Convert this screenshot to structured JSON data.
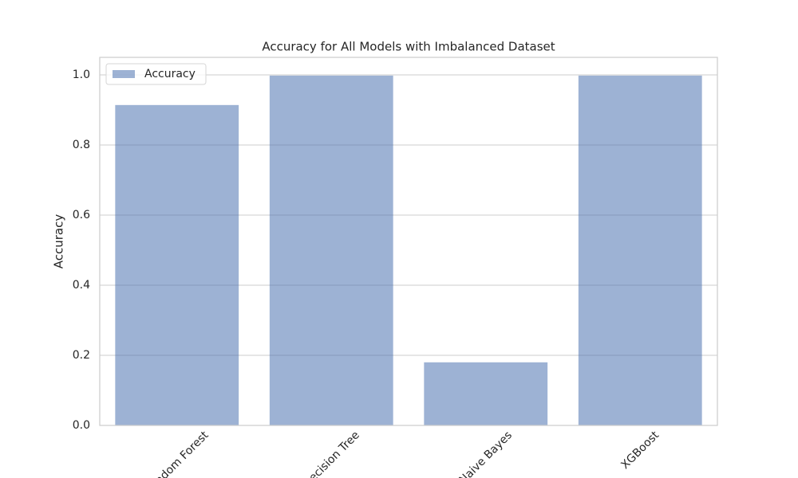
{
  "chart_data": {
    "type": "bar",
    "title": "Accuracy for All Models with Imbalanced Dataset",
    "y_label": "Accuracy",
    "categories": [
      "Random Forest",
      "Decision Tree",
      "Naive Bayes",
      "XGBoost"
    ],
    "series": [
      {
        "name": "Accuracy",
        "color": "#4c72b0",
        "values": [
          0.914,
          0.998,
          0.18,
          0.998
        ]
      }
    ],
    "ylim": [
      0,
      1.05
    ],
    "yticks": [
      {
        "value": 0,
        "label": "0.0"
      },
      {
        "value": 0.2,
        "label": "0.2"
      },
      {
        "value": 0.4,
        "label": "0.4"
      },
      {
        "value": 0.6,
        "label": "0.6"
      },
      {
        "value": 0.8,
        "label": "0.8"
      },
      {
        "value": 1,
        "label": "1.0"
      }
    ],
    "grid": true,
    "legend": "upper left"
  }
}
